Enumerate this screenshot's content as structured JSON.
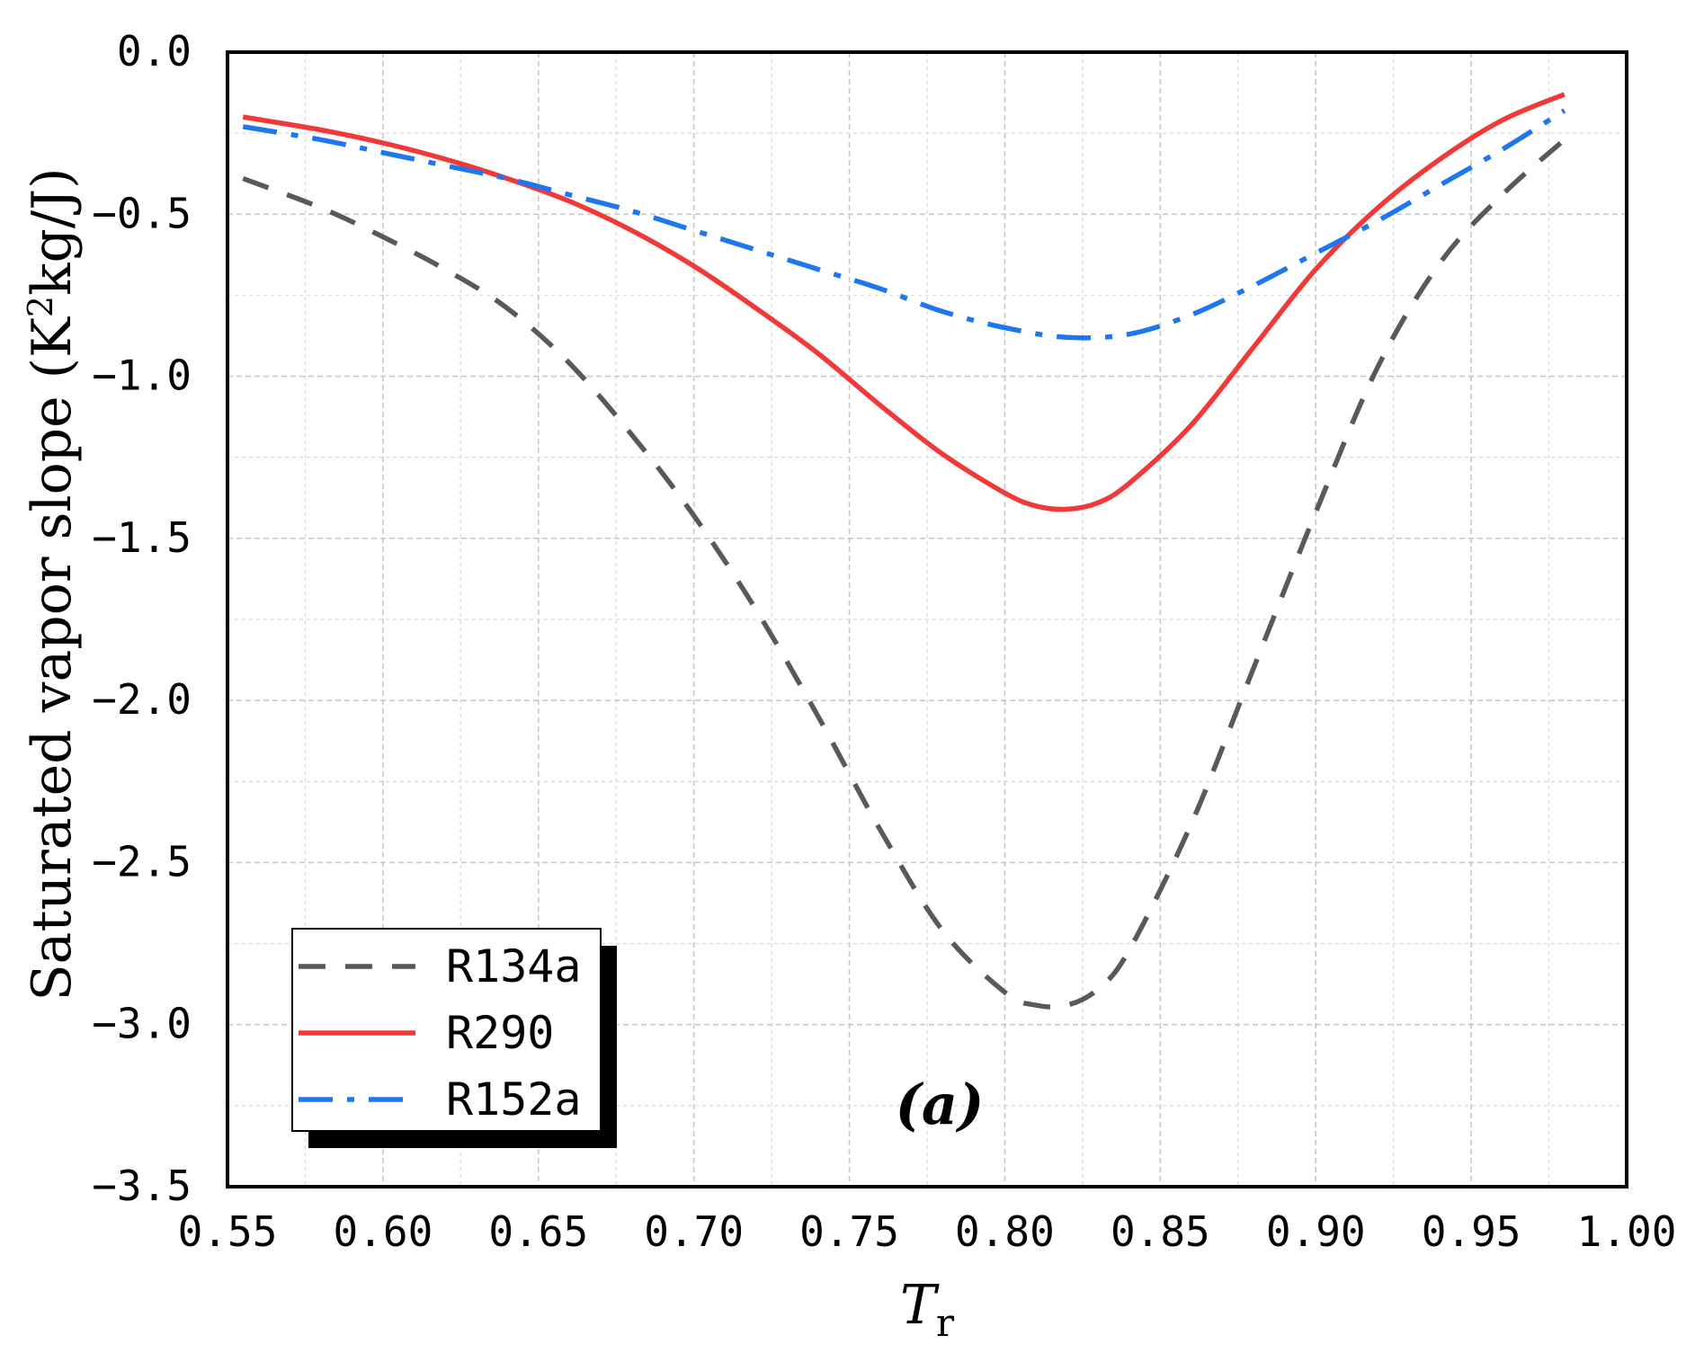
{
  "chart_data": {
    "type": "line",
    "title": "",
    "xlabel": "T",
    "xlabel_subscript": "r",
    "ylabel": "Saturated vapor slope (K",
    "ylabel_superscript": "2",
    "ylabel_suffix": "kg/J)",
    "xlim": [
      0.55,
      1.0
    ],
    "ylim": [
      -3.5,
      0.0
    ],
    "xticks": [
      0.55,
      0.6,
      0.65,
      0.7,
      0.75,
      0.8,
      0.85,
      0.9,
      0.95,
      1.0
    ],
    "xtick_labels": [
      "0.55",
      "0.60",
      "0.65",
      "0.70",
      "0.75",
      "0.80",
      "0.85",
      "0.90",
      "0.95",
      "1.00"
    ],
    "yticks": [
      0.0,
      -0.5,
      -1.0,
      -1.5,
      -2.0,
      -2.5,
      -3.0,
      -3.5
    ],
    "ytick_labels": [
      "0.0",
      "−0.5",
      "−1.0",
      "−1.5",
      "−2.0",
      "−2.5",
      "−3.0",
      "−3.5"
    ],
    "grid": true,
    "legend_position": "bottom-left",
    "annotation": "(a)",
    "series": [
      {
        "name": "R134a",
        "color": "#595959",
        "style": "dashed",
        "x": [
          0.555,
          0.58,
          0.6,
          0.62,
          0.64,
          0.66,
          0.68,
          0.7,
          0.72,
          0.74,
          0.76,
          0.78,
          0.8,
          0.81,
          0.82,
          0.83,
          0.84,
          0.86,
          0.88,
          0.9,
          0.92,
          0.94,
          0.96,
          0.98
        ],
        "values": [
          -0.39,
          -0.48,
          -0.57,
          -0.67,
          -0.79,
          -0.96,
          -1.18,
          -1.43,
          -1.72,
          -2.05,
          -2.4,
          -2.71,
          -2.9,
          -2.94,
          -2.94,
          -2.89,
          -2.77,
          -2.38,
          -1.9,
          -1.42,
          -0.97,
          -0.65,
          -0.44,
          -0.27
        ]
      },
      {
        "name": "R290",
        "color": "#f03a3a",
        "style": "solid",
        "x": [
          0.555,
          0.58,
          0.6,
          0.62,
          0.64,
          0.66,
          0.68,
          0.7,
          0.72,
          0.74,
          0.76,
          0.78,
          0.8,
          0.81,
          0.82,
          0.83,
          0.84,
          0.86,
          0.88,
          0.9,
          0.92,
          0.94,
          0.96,
          0.98
        ],
        "values": [
          -0.2,
          -0.24,
          -0.28,
          -0.33,
          -0.39,
          -0.46,
          -0.55,
          -0.66,
          -0.79,
          -0.93,
          -1.09,
          -1.24,
          -1.36,
          -1.4,
          -1.41,
          -1.39,
          -1.33,
          -1.15,
          -0.91,
          -0.67,
          -0.48,
          -0.33,
          -0.21,
          -0.13
        ]
      },
      {
        "name": "R152a",
        "color": "#1f77f0",
        "style": "dashdot",
        "x": [
          0.555,
          0.58,
          0.6,
          0.62,
          0.64,
          0.66,
          0.68,
          0.7,
          0.72,
          0.74,
          0.76,
          0.78,
          0.8,
          0.82,
          0.84,
          0.86,
          0.88,
          0.9,
          0.92,
          0.94,
          0.96,
          0.98
        ],
        "values": [
          -0.23,
          -0.27,
          -0.31,
          -0.35,
          -0.39,
          -0.44,
          -0.49,
          -0.55,
          -0.61,
          -0.67,
          -0.73,
          -0.8,
          -0.85,
          -0.88,
          -0.87,
          -0.81,
          -0.72,
          -0.62,
          -0.52,
          -0.41,
          -0.3,
          -0.18
        ]
      }
    ]
  }
}
